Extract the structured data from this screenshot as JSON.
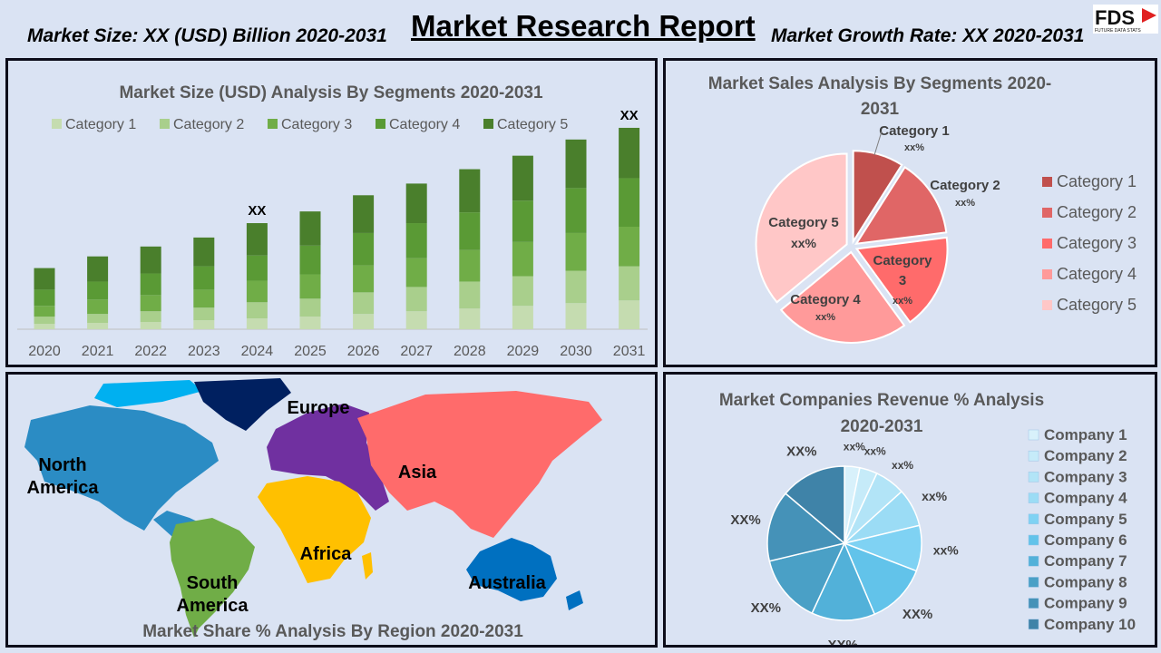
{
  "header": {
    "left": "Market Size: XX (USD) Billion 2020-2031",
    "title": "Market Research Report",
    "right": "Market Growth Rate: XX 2020-2031",
    "logo_text": "FDS",
    "logo_sub": "FUTURE DATA STATS"
  },
  "colors": {
    "bg": "#dae3f3",
    "bar_series": [
      "#c5dcb0",
      "#a9cf8c",
      "#70ad47",
      "#5a9a35",
      "#4a7f2c"
    ],
    "pie_slices": [
      "#c0504d",
      "#e06666",
      "#ff6b6b",
      "#ff9a9a",
      "#ffc7c7"
    ],
    "company_slices": [
      "#d8f1fb",
      "#c6ebf9",
      "#b2e4f7",
      "#9bdcf5",
      "#7fd2f3",
      "#62c3ea",
      "#52b1d9",
      "#4aa0c6",
      "#4592b8",
      "#3f83a8"
    ]
  },
  "chart_data": [
    {
      "type": "bar",
      "stacked": true,
      "title": "Market Size (USD) Analysis By Segments 2020-2031",
      "categories": [
        "2020",
        "2021",
        "2022",
        "2023",
        "2024",
        "2025",
        "2026",
        "2027",
        "2028",
        "2029",
        "2030",
        "2031"
      ],
      "series": [
        {
          "name": "Category 1",
          "values": [
            3.0,
            3.5,
            4.0,
            5.0,
            6.0,
            7.0,
            8.5,
            10.0,
            11.5,
            13.0,
            14.5,
            16.0
          ]
        },
        {
          "name": "Category 2",
          "values": [
            4.0,
            5.0,
            6.0,
            7.0,
            9.0,
            10.0,
            12.0,
            13.5,
            15.0,
            16.5,
            18.0,
            19.0
          ]
        },
        {
          "name": "Category 3",
          "values": [
            6.0,
            8.0,
            9.0,
            10.0,
            12.0,
            13.5,
            15.0,
            16.0,
            17.5,
            19.0,
            21.0,
            22.0
          ]
        },
        {
          "name": "Category 4",
          "values": [
            9.0,
            10.0,
            12.0,
            13.0,
            14.0,
            16.0,
            18.0,
            19.5,
            21.0,
            23.0,
            25.0,
            27.0
          ]
        },
        {
          "name": "Category 5",
          "values": [
            12.0,
            14.0,
            15.0,
            16.0,
            18.0,
            19.0,
            21.0,
            22.0,
            24.0,
            25.0,
            27.0,
            28.0
          ]
        }
      ],
      "annotations": [
        {
          "category": "2024",
          "text": "XX"
        },
        {
          "category": "2031",
          "text": "XX"
        }
      ],
      "ylim": [
        0,
        115
      ],
      "legend": "top"
    },
    {
      "type": "pie",
      "title": "Market Sales Analysis By Segments 2020-2031",
      "labels": [
        "Category 1",
        "Category 2",
        "Category 3",
        "Category 4",
        "Category 5"
      ],
      "values": [
        9,
        14,
        17,
        24,
        36
      ],
      "data_labels": [
        "xx%",
        "xx%",
        "xx%",
        "xx%",
        "xx%"
      ],
      "legend": "right"
    },
    {
      "type": "pie",
      "title": "Market Companies Revenue % Analysis 2020-2031",
      "labels": [
        "Company 1",
        "Company 2",
        "Company 3",
        "Company 4",
        "Company 5",
        "Company 6",
        "Company 7",
        "Company 8",
        "Company 9",
        "Company 10"
      ],
      "values": [
        3,
        3.5,
        6,
        7.5,
        9,
        12,
        12.5,
        13.5,
        14,
        13
      ],
      "data_labels": [
        "xx%",
        "xx%",
        "xx%",
        "xx%",
        "xx%",
        "XX%",
        "XX%",
        "XX%",
        "XX%",
        "XX%"
      ],
      "legend": "right"
    }
  ],
  "map": {
    "title": "Market Share % Analysis By Region 2020-2031",
    "regions": [
      {
        "name": "North America",
        "line1": "North",
        "line2": "America",
        "color": "#2b8cc4"
      },
      {
        "name": "Europe",
        "line1": "Europe",
        "line2": "",
        "color": "#7030a0"
      },
      {
        "name": "Asia",
        "line1": "Asia",
        "line2": "",
        "color": "#ff6b6b"
      },
      {
        "name": "Africa",
        "line1": "Africa",
        "line2": "",
        "color": "#ffc000"
      },
      {
        "name": "South America",
        "line1": "South",
        "line2": "America",
        "color": "#70ad47"
      },
      {
        "name": "Australia",
        "line1": "Australia",
        "line2": "",
        "color": "#0070c0"
      }
    ],
    "greenland_color": "#002060",
    "arctic_color": "#00b0f0"
  }
}
